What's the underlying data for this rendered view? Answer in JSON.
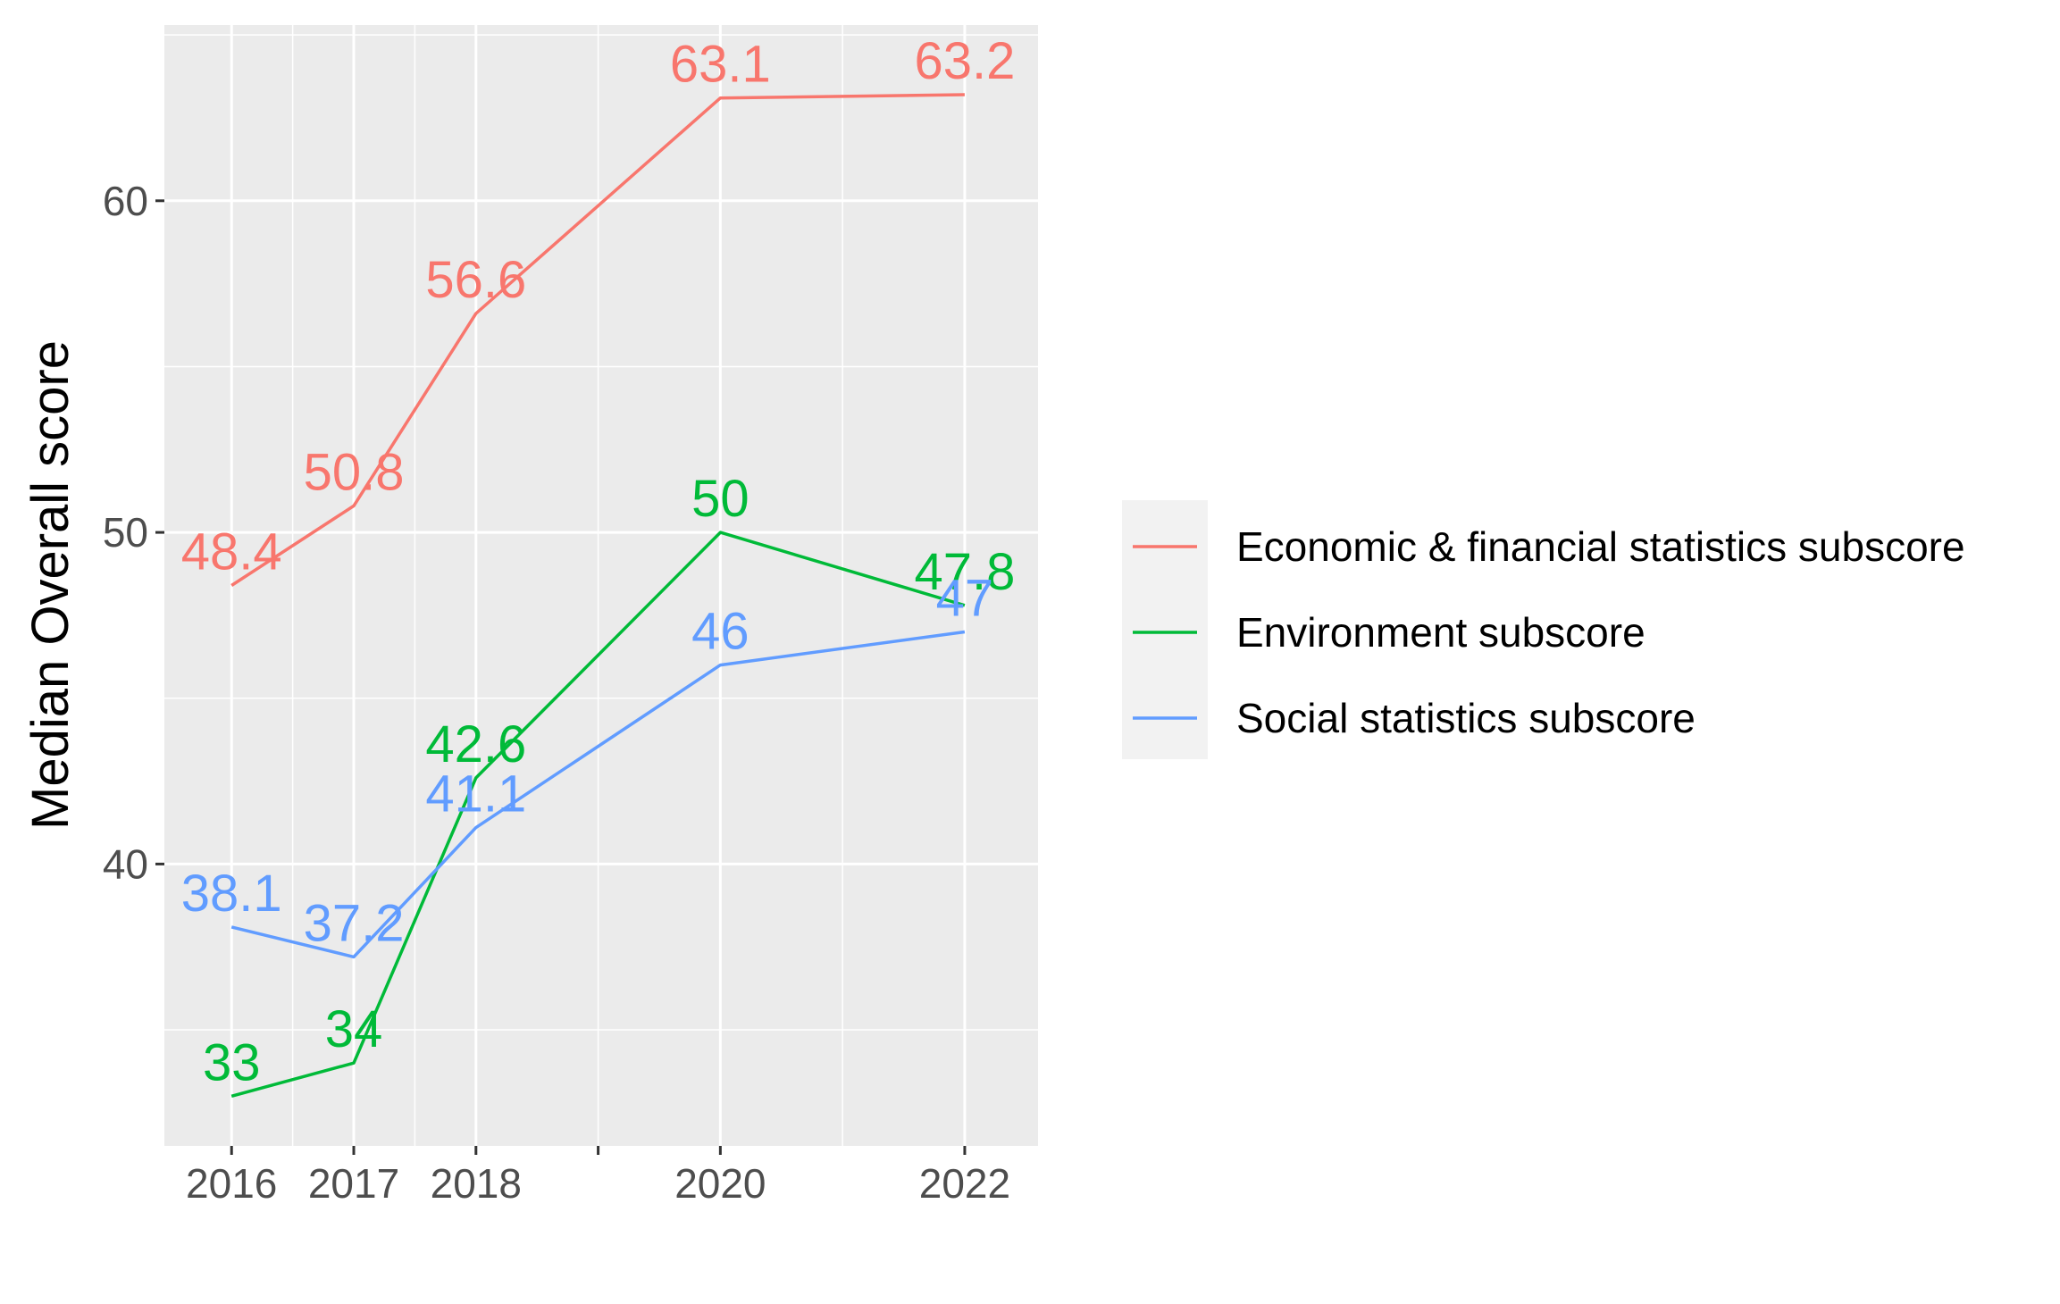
{
  "chart_data": {
    "type": "line",
    "title": "",
    "xlabel": "",
    "ylabel": "Median Overall score",
    "x": [
      2016,
      2017,
      2018,
      2020,
      2022
    ],
    "x_tick_labels": [
      "2016",
      "2017",
      "2018",
      "2020",
      "2022"
    ],
    "y_tick_labels": [
      "40",
      "50",
      "60"
    ],
    "xlim": [
      2015.45,
      2022.6
    ],
    "ylim": [
      31.5,
      65.3
    ],
    "grid": true,
    "legend_position": "right",
    "series": [
      {
        "name": "Economic & financial statistics subscore",
        "color": "#F8766D",
        "values": [
          48.4,
          50.8,
          56.6,
          63.1,
          63.2
        ],
        "labels": [
          "48.4",
          "50.8",
          "56.6",
          "63.1",
          "63.2"
        ]
      },
      {
        "name": "Environment subscore",
        "color": "#00BA38",
        "values": [
          33,
          34,
          42.6,
          50,
          47.8
        ],
        "labels": [
          "33",
          "34",
          "42.6",
          "50",
          "47.8"
        ]
      },
      {
        "name": "Social statistics subscore",
        "color": "#619CFF",
        "values": [
          38.1,
          37.2,
          41.1,
          46,
          47
        ],
        "labels": [
          "38.1",
          "37.2",
          "41.1",
          "46",
          "47"
        ]
      }
    ]
  }
}
